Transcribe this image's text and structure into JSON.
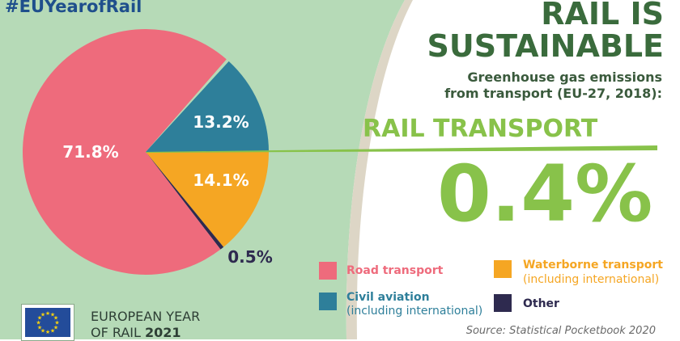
{
  "hashtag": "#EUYearofRail",
  "title_line1": "RAIL IS",
  "title_line2": "SUSTAINABLE",
  "subtitle_line1": "Greenhouse gas emissions",
  "subtitle_line2": "from transport (EU-27, 2018):",
  "rail_label": "RAIL TRANSPORT",
  "rail_value": "0.4%",
  "colors": {
    "background_green": "#b6dab7",
    "road": "#ee6b7c",
    "aviation": "#2e7f9a",
    "waterborne": "#f5a623",
    "other": "#2e2a4f",
    "rail": "#88c24a"
  },
  "chart_data": {
    "type": "pie",
    "slices": [
      {
        "name": "Road transport",
        "value": 71.8,
        "label": "71.8%",
        "color": "#ee6b7c"
      },
      {
        "name": "Civil aviation",
        "value": 13.2,
        "label": "13.2%",
        "color": "#2e7f9a"
      },
      {
        "name": "Waterborne transport",
        "value": 14.1,
        "label": "14.1%",
        "color": "#f5a623"
      },
      {
        "name": "Other",
        "value": 0.5,
        "label": "0.5%",
        "color": "#2e2a4f"
      },
      {
        "name": "Rail transport",
        "value": 0.4,
        "label": "0.4%",
        "color": "#88c24a"
      }
    ]
  },
  "legend": {
    "road": {
      "title": "Road transport",
      "sub": ""
    },
    "aviation": {
      "title": "Civil aviation",
      "sub": "(including international)"
    },
    "waterborne": {
      "title": "Waterborne transport",
      "sub": "(including international)"
    },
    "other": {
      "title": "Other",
      "sub": ""
    }
  },
  "eu_logo": {
    "line1": "EUROPEAN YEAR",
    "line2_prefix": "OF RAIL",
    "year": "2021"
  },
  "source": "Source: Statistical Pocketbook 2020"
}
